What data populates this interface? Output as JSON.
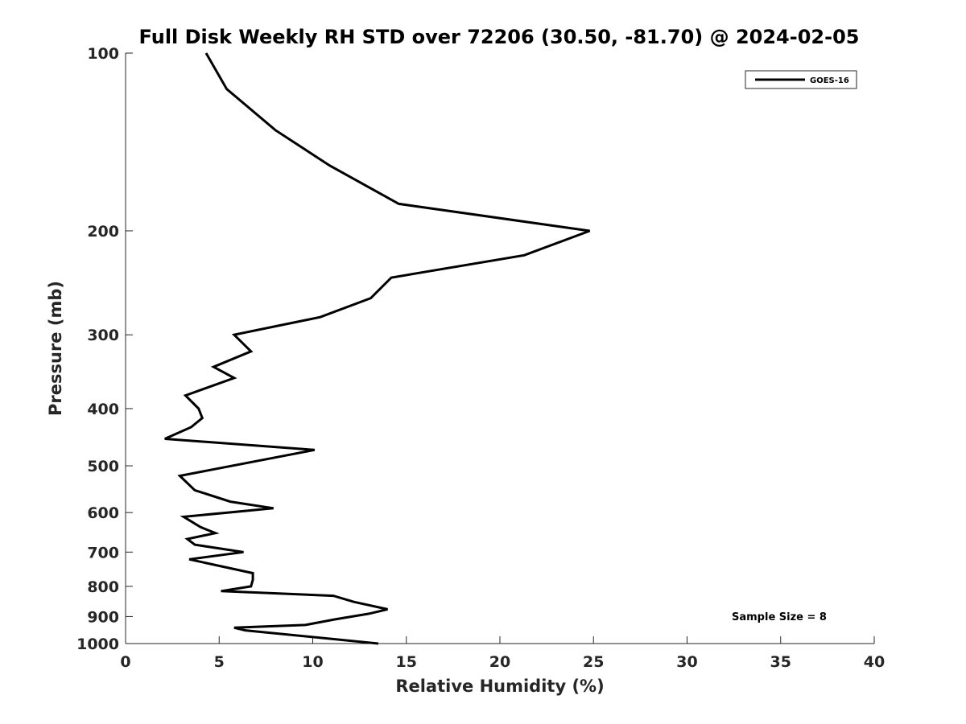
{
  "chart_data": {
    "type": "line",
    "title": "Full Disk Weekly RH STD over 72206 (30.50, -81.70) @ 2024-02-05",
    "xlabel": "Relative Humidity (%)",
    "ylabel": "Pressure (mb)",
    "xlim": [
      0,
      40
    ],
    "ylim": [
      100,
      1000
    ],
    "y_scale": "log",
    "y_inverted": true,
    "x_ticks": [
      "0",
      "5",
      "10",
      "15",
      "20",
      "25",
      "30",
      "35",
      "40"
    ],
    "y_ticks": [
      "100",
      "200",
      "300",
      "400",
      "500",
      "600",
      "700",
      "800",
      "900",
      "1000"
    ],
    "grid": false,
    "legend": {
      "position": "top-right",
      "entries": [
        "GOES-16"
      ]
    },
    "annotation": "Sample Size = 8",
    "series": [
      {
        "name": "GOES-16",
        "color": "#000000",
        "points": [
          [
            4.3,
            100
          ],
          [
            5.4,
            115
          ],
          [
            8.0,
            135
          ],
          [
            10.9,
            155
          ],
          [
            14.6,
            180
          ],
          [
            24.8,
            200
          ],
          [
            21.3,
            220
          ],
          [
            14.2,
            240
          ],
          [
            13.1,
            260
          ],
          [
            10.4,
            280
          ],
          [
            5.8,
            300
          ],
          [
            6.7,
            320
          ],
          [
            4.7,
            340
          ],
          [
            5.8,
            355
          ],
          [
            3.2,
            380
          ],
          [
            3.9,
            400
          ],
          [
            4.1,
            415
          ],
          [
            3.5,
            430
          ],
          [
            2.1,
            450
          ],
          [
            10.1,
            470
          ],
          [
            2.9,
            520
          ],
          [
            3.7,
            550
          ],
          [
            5.6,
            575
          ],
          [
            7.9,
            590
          ],
          [
            3.1,
            610
          ],
          [
            4.0,
            635
          ],
          [
            4.8,
            650
          ],
          [
            3.3,
            665
          ],
          [
            3.7,
            680
          ],
          [
            6.3,
            700
          ],
          [
            3.4,
            720
          ],
          [
            6.8,
            760
          ],
          [
            6.8,
            780
          ],
          [
            6.7,
            800
          ],
          [
            5.1,
            815
          ],
          [
            11.1,
            830
          ],
          [
            12.2,
            850
          ],
          [
            14.0,
            875
          ],
          [
            13.0,
            890
          ],
          [
            11.2,
            910
          ],
          [
            9.6,
            930
          ],
          [
            5.8,
            940
          ],
          [
            6.4,
            950
          ],
          [
            13.5,
            1000
          ]
        ]
      }
    ]
  }
}
